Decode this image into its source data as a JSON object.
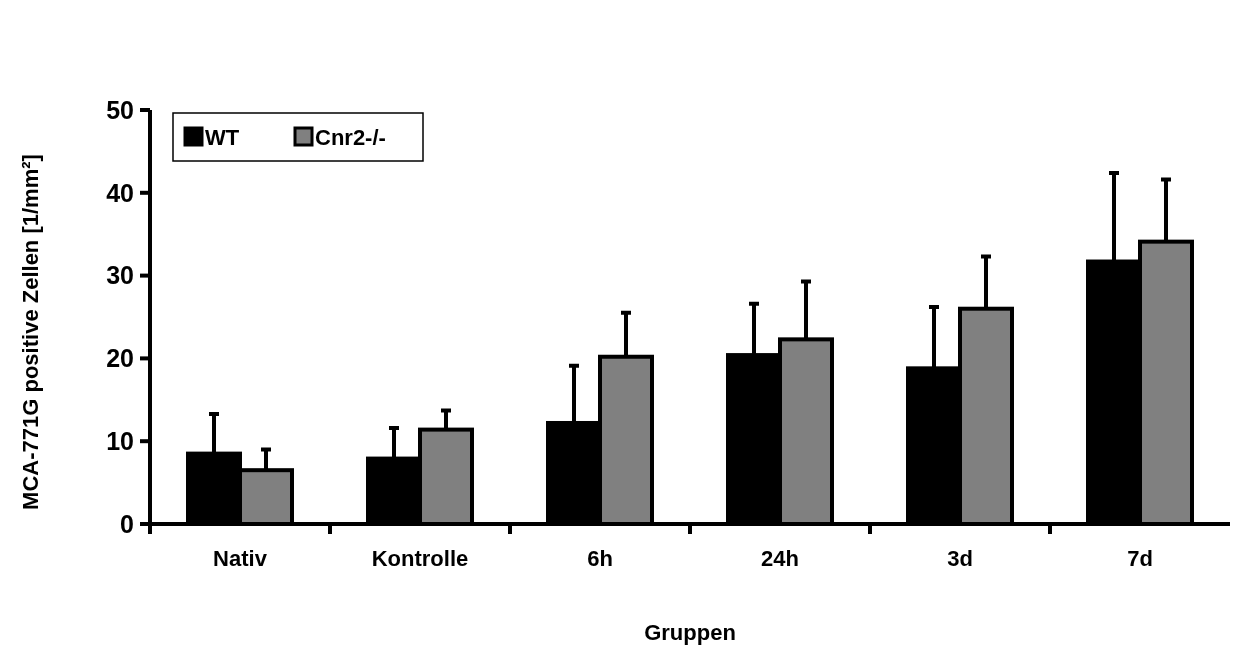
{
  "chart_data": {
    "type": "bar",
    "xlabel": "Gruppen",
    "ylabel": "MCA-771G positive Zellen [1/mm²]",
    "categories": [
      "Nativ",
      "Kontrolle",
      "6h",
      "24h",
      "3d",
      "7d"
    ],
    "series": [
      {
        "name": "WT",
        "color": "#000000",
        "values": [
          8.5,
          7.9,
          12.2,
          20.4,
          18.8,
          31.7
        ],
        "errors": [
          [
            8.5,
            13.3
          ],
          [
            7.9,
            11.6
          ],
          [
            12.2,
            19.1
          ],
          [
            20.4,
            26.6
          ],
          [
            18.8,
            26.2
          ],
          [
            31.7,
            42.4
          ]
        ]
      },
      {
        "name": "Cnr2-/-",
        "color": "#808080",
        "values": [
          6.5,
          11.4,
          20.2,
          22.3,
          26.0,
          34.1
        ],
        "errors": [
          [
            6.5,
            9.0
          ],
          [
            11.4,
            13.7
          ],
          [
            20.2,
            25.5
          ],
          [
            22.3,
            29.3
          ],
          [
            26.0,
            32.3
          ],
          [
            34.1,
            41.6
          ]
        ]
      }
    ],
    "ylim": [
      0,
      50
    ],
    "yticks": [
      0,
      10,
      20,
      30,
      40,
      50
    ],
    "grid": false,
    "legend": "top left"
  }
}
